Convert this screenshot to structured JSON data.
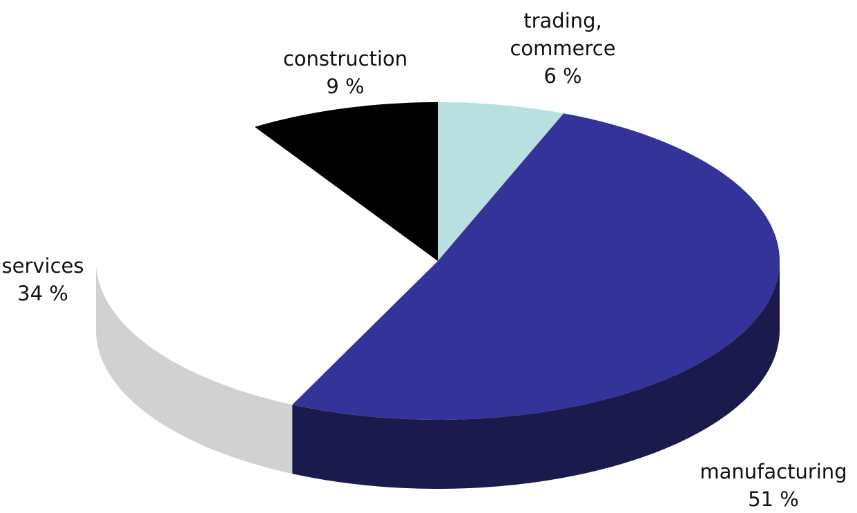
{
  "chart_data": {
    "type": "pie",
    "categories": [
      "trading, commerce",
      "manufacturing",
      "services",
      "construction"
    ],
    "values": [
      6,
      51,
      34,
      9
    ],
    "value_labels": [
      "6 %",
      "51 %",
      "34 %",
      "9 %"
    ],
    "colors": [
      "#b8e0e0",
      "#333399",
      "#ffffff",
      "#000000"
    ]
  }
}
